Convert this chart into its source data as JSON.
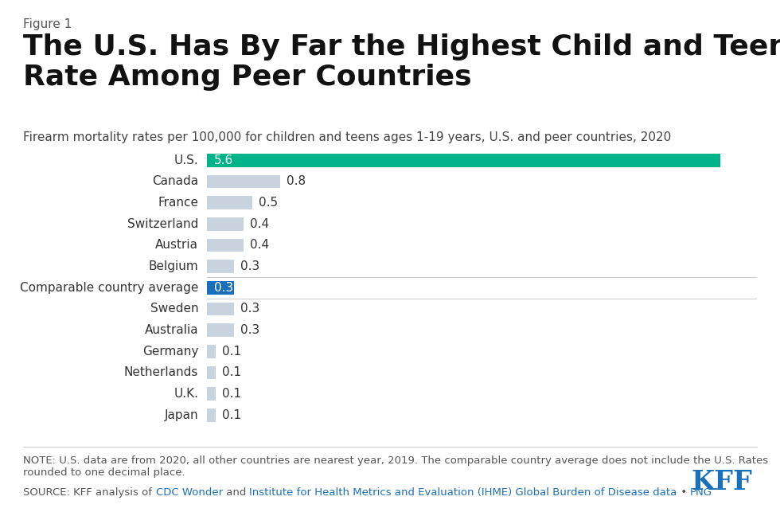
{
  "figure_label": "Figure 1",
  "title": "The U.S. Has By Far the Highest Child and Teen Firearm Mortality\nRate Among Peer Countries",
  "subtitle": "Firearm mortality rates per 100,000 for children and teens ages 1-19 years, U.S. and peer countries, 2020",
  "countries": [
    "U.S.",
    "Canada",
    "France",
    "Switzerland",
    "Austria",
    "Belgium",
    "Comparable country average",
    "Sweden",
    "Australia",
    "Germany",
    "Netherlands",
    "U.K.",
    "Japan"
  ],
  "values": [
    5.6,
    0.8,
    0.5,
    0.4,
    0.4,
    0.3,
    0.3,
    0.3,
    0.3,
    0.1,
    0.1,
    0.1,
    0.1
  ],
  "bar_colors": [
    "#00b388",
    "#c8d3dd",
    "#c8d3dd",
    "#c8d3dd",
    "#c8d3dd",
    "#c8d3dd",
    "#1a6fbb",
    "#c8d3dd",
    "#c8d3dd",
    "#c8d3dd",
    "#c8d3dd",
    "#c8d3dd",
    "#c8d3dd"
  ],
  "label_colors": [
    "#ffffff",
    "#444444",
    "#444444",
    "#444444",
    "#444444",
    "#444444",
    "#ffffff",
    "#444444",
    "#444444",
    "#444444",
    "#444444",
    "#444444",
    "#444444"
  ],
  "label_inside": [
    true,
    false,
    false,
    false,
    false,
    false,
    true,
    false,
    false,
    false,
    false,
    false,
    false
  ],
  "note_text": "NOTE: U.S. data are from 2020, all other countries are nearest year, 2019. The comparable country average does not include the U.S. Rates\nrounded to one decimal place.",
  "source_plain": "SOURCE: KFF analysis of ",
  "source_parts": [
    {
      "text": "CDC Wonder",
      "color": "#1a6fbb"
    },
    {
      "text": " and ",
      "color": "#555555"
    },
    {
      "text": "Institute for Health Metrics and Evaluation (IHME) Global Burden of Disease data",
      "color": "#1a6fbb"
    },
    {
      "text": " • ",
      "color": "#555555"
    },
    {
      "text": "PNG",
      "color": "#1a6fbb"
    }
  ],
  "kff_color": "#1a6fbb",
  "background_color": "#ffffff",
  "title_fontsize": 26,
  "subtitle_fontsize": 11,
  "figure_label_fontsize": 11,
  "bar_label_fontsize": 11,
  "note_fontsize": 9.5,
  "source_fontsize": 9.5,
  "xlim_max": 6.0,
  "bar_height": 0.62
}
